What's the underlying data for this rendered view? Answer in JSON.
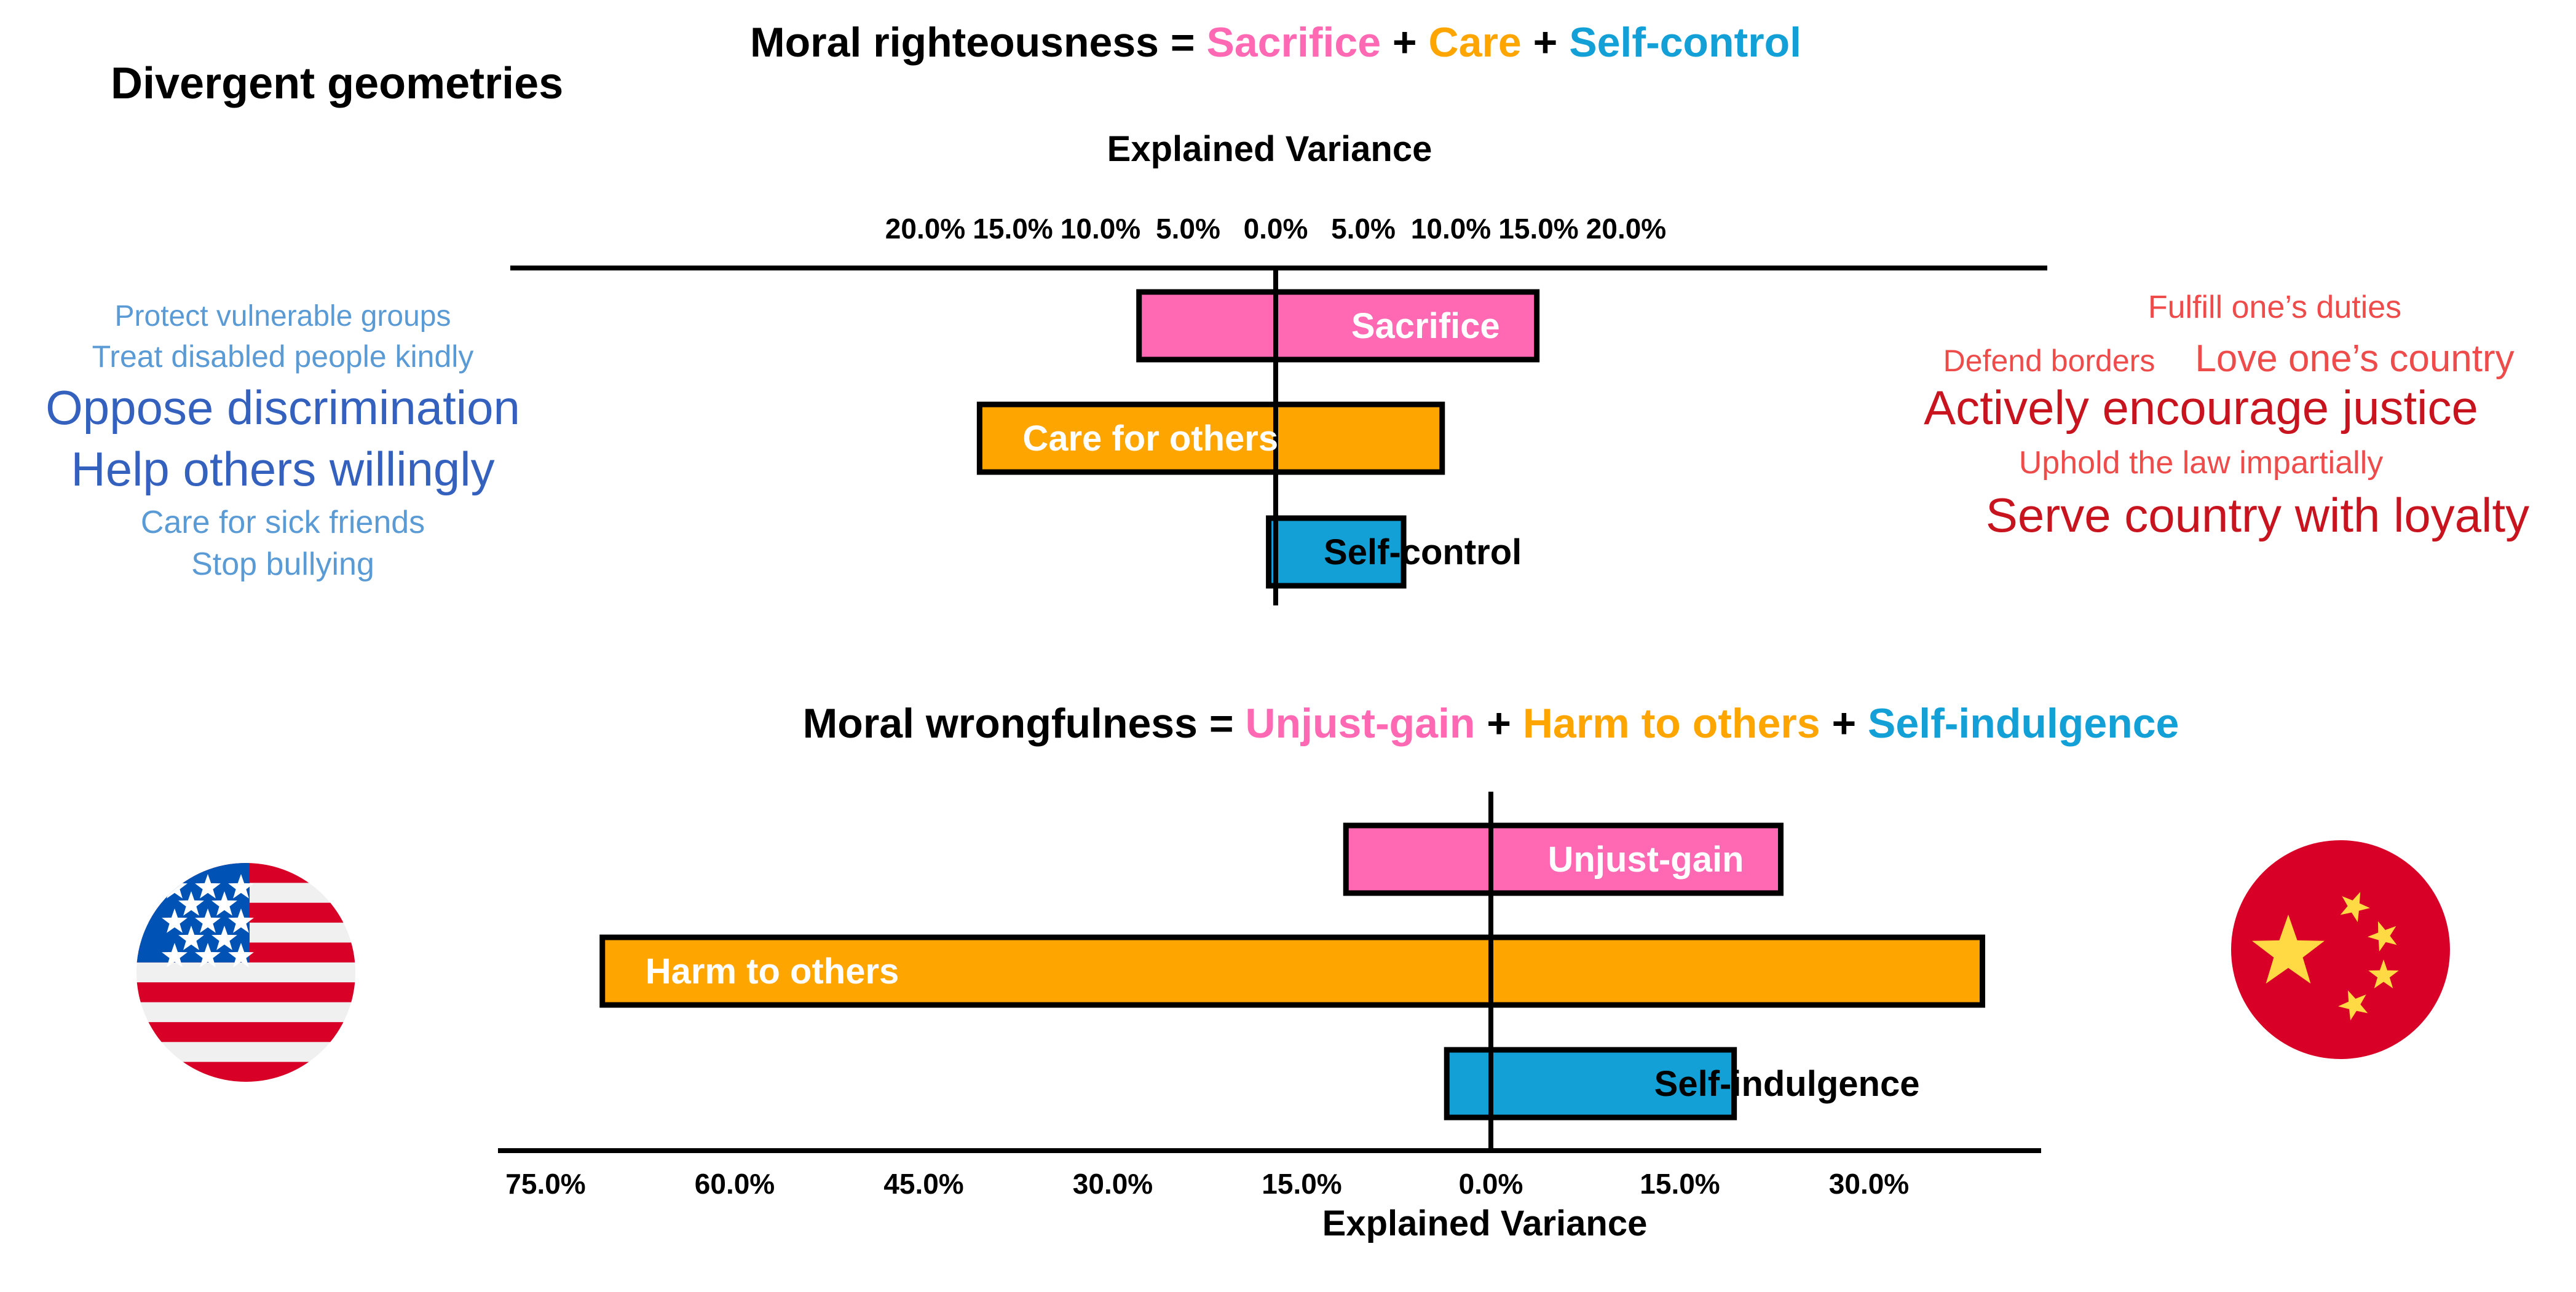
{
  "main_title": "Divergent geometries",
  "colors": {
    "pink": "#ff69b4",
    "orange": "#ffa500",
    "blue": "#12a0d7",
    "usa_words_light": "#5b9bd5",
    "usa_words_dark": "#3561be",
    "china_words_light": "#ee4b4b",
    "china_words_dark": "#c8141e"
  },
  "top_equation": {
    "lhs": "Moral righteousness = ",
    "terms": [
      "Sacrifice",
      "Care",
      "Self-control"
    ],
    "operator": " + "
  },
  "bottom_equation": {
    "lhs": "Moral wrongfulness = ",
    "terms": [
      "Unjust-gain",
      "Harm to others",
      "Self-indulgence"
    ],
    "operator": " + "
  },
  "usa_words": [
    {
      "text": "Protect vulnerable groups",
      "size": "small"
    },
    {
      "text": "Treat disabled people kindly",
      "size": "small"
    },
    {
      "text": "Oppose discrimination",
      "size": "large"
    },
    {
      "text": "Help others willingly",
      "size": "large"
    },
    {
      "text": "Care for sick friends",
      "size": "small"
    },
    {
      "text": "Stop bullying",
      "size": "small"
    }
  ],
  "china_words": [
    {
      "text": "Fulfill one’s duties",
      "size": "small"
    },
    {
      "text": "Defend borders",
      "size": "xsmall"
    },
    {
      "text": "Love one’s country",
      "size": "small"
    },
    {
      "text": "Actively encourage justice",
      "size": "large"
    },
    {
      "text": "Uphold the law impartially",
      "size": "small"
    },
    {
      "text": "Serve country with loyalty",
      "size": "large"
    }
  ],
  "chart_data": [
    {
      "type": "bar",
      "orientation": "horizontal-diverging",
      "xlabel": "Explained Variance",
      "xlabel_position": "top",
      "ticks": [
        -20,
        -15,
        -10,
        -5,
        0,
        5,
        10,
        15,
        20
      ],
      "tick_labels": [
        "20.0%",
        "15.0%",
        "10.0%",
        "5.0%",
        "0.0%",
        "5.0%",
        "10.0%",
        "15.0%",
        "20.0%"
      ],
      "xlim": [
        -22,
        22
      ],
      "left_group": "USA",
      "right_group": "China",
      "bars": [
        {
          "label": "Sacrifice",
          "left": 7.8,
          "right": 14.9,
          "color": "pink",
          "label_color": "#ffffff",
          "label_side": "right-inside"
        },
        {
          "label": "Care for others",
          "left": 16.9,
          "right": 9.5,
          "color": "orange",
          "label_color": "#ffffff",
          "label_side": "left-inside"
        },
        {
          "label": "Self-control",
          "left": 0.4,
          "right": 7.3,
          "color": "blue",
          "label_color": "#000000",
          "label_side": "right-overlap"
        }
      ]
    },
    {
      "type": "bar",
      "orientation": "horizontal-diverging",
      "xlabel": "Explained Variance",
      "xlabel_position": "bottom",
      "ticks": [
        -75,
        -60,
        -45,
        -30,
        -15,
        0,
        15,
        30
      ],
      "tick_labels": [
        "75.0%",
        "60.0%",
        "45.0%",
        "30.0%",
        "15.0%",
        "0.0%",
        "15.0%",
        "30.0%"
      ],
      "xlim": [
        -79,
        43
      ],
      "left_group": "USA",
      "right_group": "China",
      "bars": [
        {
          "label": "Unjust-gain",
          "left": 11.5,
          "right": 23.0,
          "color": "pink",
          "label_color": "#ffffff",
          "label_side": "right-inside"
        },
        {
          "label": "Harm to others",
          "left": 70.5,
          "right": 39.0,
          "color": "orange",
          "label_color": "#ffffff",
          "label_side": "left-inside"
        },
        {
          "label": "Self-indulgence",
          "left": 3.5,
          "right": 19.3,
          "color": "blue",
          "label_color": "#000000",
          "label_side": "right-overlap"
        }
      ]
    }
  ]
}
